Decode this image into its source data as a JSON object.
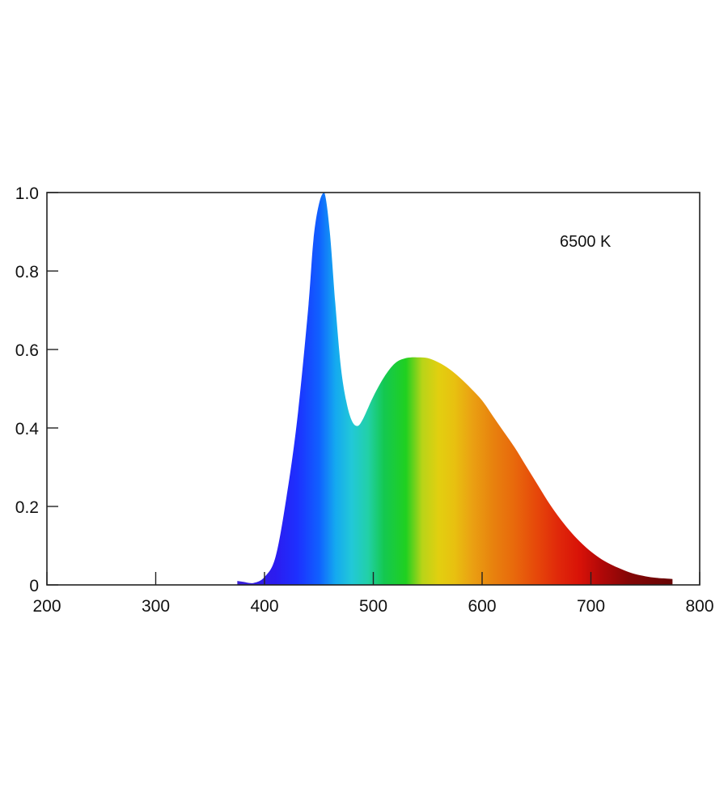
{
  "chart_data": {
    "type": "area",
    "title": "",
    "xlabel": "",
    "ylabel": "",
    "annotation": "6500 K",
    "xlim": [
      200,
      800
    ],
    "ylim": [
      0,
      1.0
    ],
    "x_ticks": [
      200,
      300,
      400,
      500,
      600,
      700,
      800
    ],
    "x_tick_labels": [
      "200",
      "300",
      "400",
      "500",
      "600",
      "700",
      "800"
    ],
    "y_ticks": [
      0,
      0.2,
      0.4,
      0.6,
      0.8,
      1.0
    ],
    "y_tick_labels": [
      "0",
      "0.2",
      "0.4",
      "0.6",
      "0.8",
      "1.0"
    ],
    "grid": false,
    "fill": "visible-spectrum",
    "x": [
      375,
      380,
      390,
      400,
      410,
      420,
      430,
      440,
      445,
      450,
      455,
      460,
      465,
      470,
      475,
      480,
      485,
      490,
      500,
      510,
      520,
      530,
      540,
      550,
      560,
      570,
      580,
      590,
      600,
      610,
      620,
      630,
      640,
      650,
      660,
      670,
      680,
      690,
      700,
      710,
      720,
      730,
      740,
      750,
      760,
      770,
      775
    ],
    "y": [
      0.01,
      0.008,
      0.005,
      0.02,
      0.07,
      0.22,
      0.42,
      0.7,
      0.88,
      0.97,
      1.0,
      0.9,
      0.72,
      0.56,
      0.47,
      0.42,
      0.405,
      0.42,
      0.48,
      0.53,
      0.565,
      0.578,
      0.58,
      0.578,
      0.567,
      0.55,
      0.527,
      0.5,
      0.47,
      0.43,
      0.39,
      0.35,
      0.305,
      0.26,
      0.215,
      0.175,
      0.14,
      0.11,
      0.085,
      0.065,
      0.05,
      0.038,
      0.028,
      0.022,
      0.018,
      0.016,
      0.015
    ]
  }
}
